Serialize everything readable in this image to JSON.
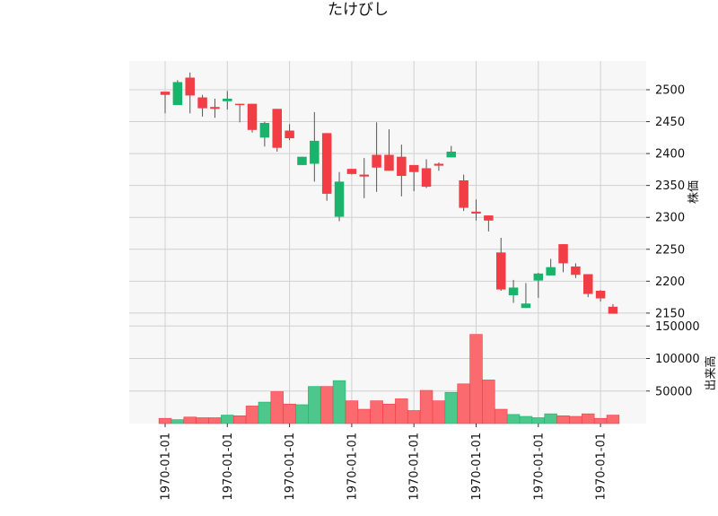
{
  "chart_data": {
    "type": "candlestick",
    "title": "たけびし",
    "price_panel": {
      "ylabel": "株価",
      "ylim": [
        2140,
        2545
      ],
      "yticks": [
        2150,
        2200,
        2250,
        2300,
        2350,
        2400,
        2450,
        2500
      ],
      "grid": true,
      "axis_side": "right"
    },
    "volume_panel": {
      "ylabel": "出来高",
      "ylim": [
        0,
        160000
      ],
      "yticks": [
        50000,
        100000,
        150000
      ],
      "grid": true,
      "axis_side": "right"
    },
    "x_tick_labels": [
      "1970-01-01",
      "1970-01-01",
      "1970-01-01",
      "1970-01-01",
      "1970-01-01",
      "1970-01-01",
      "1970-01-01",
      "1970-01-01"
    ],
    "x_tick_candle_index": [
      0,
      5,
      10,
      15,
      20,
      25,
      30,
      35
    ],
    "colors": {
      "up": "#19b36b",
      "down": "#f33d44",
      "up_volume": "#4cc88c",
      "down_volume": "#fb6a6f",
      "wick": "#555555",
      "panel_bg": "#f7f7f7",
      "grid": "#d0d0d0"
    },
    "candles": [
      {
        "open": 2497,
        "high": 2497,
        "low": 2463,
        "close": 2492,
        "volume": 8000
      },
      {
        "open": 2476,
        "high": 2515,
        "low": 2476,
        "close": 2512,
        "volume": 6000
      },
      {
        "open": 2519,
        "high": 2527,
        "low": 2463,
        "close": 2491,
        "volume": 10000
      },
      {
        "open": 2488,
        "high": 2492,
        "low": 2458,
        "close": 2471,
        "volume": 9000
      },
      {
        "open": 2473,
        "high": 2486,
        "low": 2456,
        "close": 2470,
        "volume": 9000
      },
      {
        "open": 2482,
        "high": 2498,
        "low": 2469,
        "close": 2486,
        "volume": 13000
      },
      {
        "open": 2478,
        "high": 2478,
        "low": 2449,
        "close": 2476,
        "volume": 12000
      },
      {
        "open": 2478,
        "high": 2478,
        "low": 2433,
        "close": 2437,
        "volume": 27000
      },
      {
        "open": 2425,
        "high": 2450,
        "low": 2411,
        "close": 2448,
        "volume": 33000
      },
      {
        "open": 2470,
        "high": 2470,
        "low": 2403,
        "close": 2409,
        "volume": 49000
      },
      {
        "open": 2436,
        "high": 2446,
        "low": 2421,
        "close": 2424,
        "volume": 30000
      },
      {
        "open": 2382,
        "high": 2395,
        "low": 2382,
        "close": 2395,
        "volume": 29000
      },
      {
        "open": 2384,
        "high": 2465,
        "low": 2356,
        "close": 2420,
        "volume": 57000
      },
      {
        "open": 2432,
        "high": 2432,
        "low": 2326,
        "close": 2337,
        "volume": 57000
      },
      {
        "open": 2301,
        "high": 2371,
        "low": 2294,
        "close": 2356,
        "volume": 66000
      },
      {
        "open": 2376,
        "high": 2376,
        "low": 2367,
        "close": 2368,
        "volume": 35000
      },
      {
        "open": 2367,
        "high": 2393,
        "low": 2330,
        "close": 2364,
        "volume": 22000
      },
      {
        "open": 2398,
        "high": 2449,
        "low": 2340,
        "close": 2378,
        "volume": 35000
      },
      {
        "open": 2398,
        "high": 2438,
        "low": 2373,
        "close": 2373,
        "volume": 30000
      },
      {
        "open": 2395,
        "high": 2414,
        "low": 2333,
        "close": 2365,
        "volume": 38000
      },
      {
        "open": 2382,
        "high": 2382,
        "low": 2341,
        "close": 2371,
        "volume": 20000
      },
      {
        "open": 2377,
        "high": 2391,
        "low": 2346,
        "close": 2348,
        "volume": 51000
      },
      {
        "open": 2384,
        "high": 2386,
        "low": 2373,
        "close": 2381,
        "volume": 35000
      },
      {
        "open": 2394,
        "high": 2412,
        "low": 2394,
        "close": 2403,
        "volume": 48000
      },
      {
        "open": 2358,
        "high": 2367,
        "low": 2310,
        "close": 2315,
        "volume": 61000
      },
      {
        "open": 2309,
        "high": 2328,
        "low": 2295,
        "close": 2306,
        "volume": 137000
      },
      {
        "open": 2303,
        "high": 2303,
        "low": 2278,
        "close": 2295,
        "volume": 67000
      },
      {
        "open": 2245,
        "high": 2268,
        "low": 2185,
        "close": 2187,
        "volume": 22000
      },
      {
        "open": 2178,
        "high": 2202,
        "low": 2166,
        "close": 2190,
        "volume": 14000
      },
      {
        "open": 2158,
        "high": 2197,
        "low": 2158,
        "close": 2165,
        "volume": 11000
      },
      {
        "open": 2201,
        "high": 2213,
        "low": 2174,
        "close": 2212,
        "volume": 9000
      },
      {
        "open": 2209,
        "high": 2235,
        "low": 2209,
        "close": 2222,
        "volume": 15000
      },
      {
        "open": 2258,
        "high": 2258,
        "low": 2214,
        "close": 2228,
        "volume": 12000
      },
      {
        "open": 2223,
        "high": 2228,
        "low": 2205,
        "close": 2210,
        "volume": 11000
      },
      {
        "open": 2211,
        "high": 2211,
        "low": 2175,
        "close": 2180,
        "volume": 15000
      },
      {
        "open": 2185,
        "high": 2186,
        "low": 2168,
        "close": 2173,
        "volume": 8000
      },
      {
        "open": 2160,
        "high": 2164,
        "low": 2149,
        "close": 2149,
        "volume": 13000
      }
    ]
  }
}
